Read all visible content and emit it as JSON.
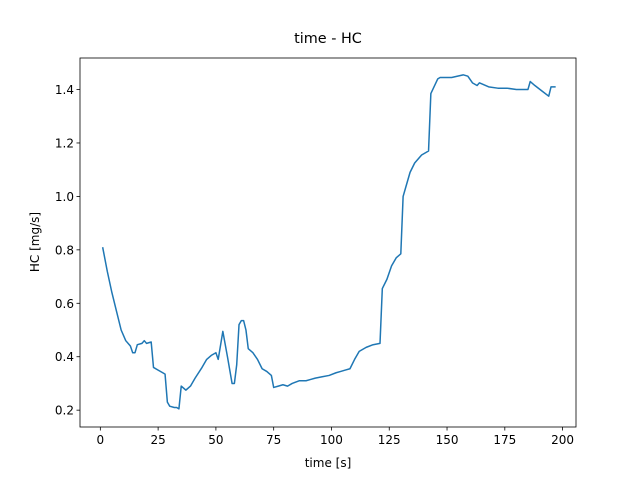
{
  "chart_data": {
    "type": "line",
    "title": "time - HC",
    "x_label": "time [s]",
    "y_label": "HC [mg/s]",
    "x": [
      1,
      3,
      5,
      7,
      9,
      11,
      13,
      14,
      15,
      16,
      18,
      19,
      20,
      22,
      23,
      25,
      27,
      28,
      29,
      30,
      32,
      33,
      34,
      35,
      37,
      39,
      41,
      44,
      46,
      48,
      50,
      51,
      53,
      55,
      57,
      58,
      59,
      60,
      61,
      62,
      63,
      64,
      66,
      68,
      70,
      72,
      74,
      75,
      77,
      79,
      81,
      83,
      86,
      89,
      91,
      93,
      96,
      99,
      102,
      104,
      106,
      108,
      110,
      112,
      115,
      118,
      121,
      122,
      124,
      126,
      128,
      130,
      131,
      132,
      134,
      136,
      139,
      142,
      143,
      146,
      147,
      152,
      157,
      159,
      161,
      163,
      164,
      168,
      172,
      176,
      180,
      185,
      186,
      188,
      191,
      194,
      195,
      197
    ],
    "series": [
      {
        "name": "HC",
        "color": "#1f77b4",
        "values": [
          0.81,
          0.72,
          0.64,
          0.57,
          0.5,
          0.46,
          0.44,
          0.415,
          0.415,
          0.445,
          0.45,
          0.46,
          0.45,
          0.455,
          0.36,
          0.35,
          0.34,
          0.335,
          0.23,
          0.215,
          0.21,
          0.21,
          0.205,
          0.29,
          0.275,
          0.29,
          0.32,
          0.36,
          0.39,
          0.405,
          0.415,
          0.39,
          0.495,
          0.4,
          0.3,
          0.3,
          0.37,
          0.52,
          0.535,
          0.535,
          0.5,
          0.43,
          0.415,
          0.39,
          0.355,
          0.345,
          0.33,
          0.285,
          0.29,
          0.295,
          0.29,
          0.3,
          0.31,
          0.31,
          0.315,
          0.32,
          0.325,
          0.33,
          0.34,
          0.345,
          0.35,
          0.355,
          0.39,
          0.42,
          0.435,
          0.445,
          0.45,
          0.655,
          0.69,
          0.74,
          0.77,
          0.785,
          1.0,
          1.03,
          1.09,
          1.125,
          1.155,
          1.17,
          1.385,
          1.44,
          1.445,
          1.445,
          1.455,
          1.45,
          1.425,
          1.415,
          1.425,
          1.41,
          1.405,
          1.405,
          1.4,
          1.4,
          1.43,
          1.415,
          1.395,
          1.375,
          1.41,
          1.41
        ]
      }
    ],
    "xlim": [
      -8.8,
      205.8
    ],
    "ylim": [
      0.137,
      1.518
    ],
    "xticks": [
      0,
      25,
      50,
      75,
      100,
      125,
      150,
      175,
      200
    ],
    "yticks": [
      0.2,
      0.4,
      0.6,
      0.8,
      {
        "value": 1,
        "label": "1.0"
      },
      1.2,
      1.4
    ]
  }
}
